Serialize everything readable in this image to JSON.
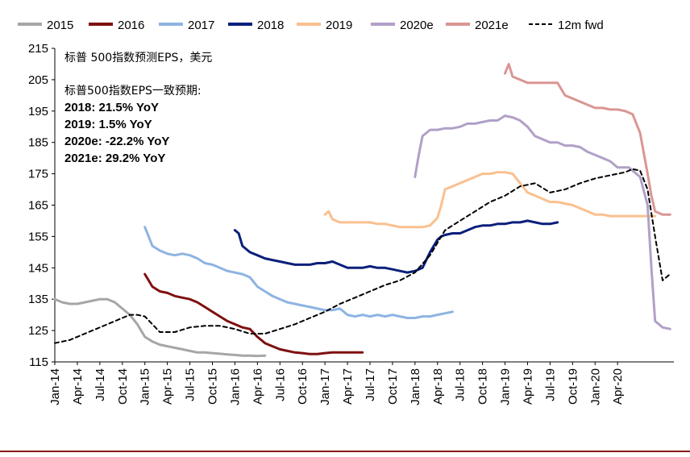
{
  "chart_data": {
    "type": "line",
    "title": "",
    "xlabel": "",
    "ylabel": "",
    "ylim": [
      115,
      215
    ],
    "yticks": [
      115,
      125,
      135,
      145,
      155,
      165,
      175,
      185,
      195,
      205,
      215
    ],
    "xticks": [
      "Jan-14",
      "Apr-14",
      "Jul-14",
      "Oct-14",
      "Jan-15",
      "Apr-15",
      "Jul-15",
      "Oct-15",
      "Jan-16",
      "Apr-16",
      "Jul-16",
      "Oct-16",
      "Jan-17",
      "Apr-17",
      "Jul-17",
      "Oct-17",
      "Jan-18",
      "Apr-18",
      "Jul-18",
      "Oct-18",
      "Jan-19",
      "Apr-19",
      "Jul-19",
      "Oct-19",
      "Jan-20",
      "Apr-20"
    ],
    "x_unit": "months since Jan-14",
    "annotations": {
      "title": "标普 500指数预测EPS，美元",
      "subtitle": "标普500指数EPS一致预期:",
      "lines": [
        "2018: 21.5% YoY",
        "2019: 1.5% YoY",
        "2020e: -22.2% YoY",
        "2021e: 29.2% YoY"
      ]
    },
    "series": [
      {
        "name": "2015",
        "color": "#a6a6a6",
        "dash": false,
        "x": [
          0,
          1,
          2,
          3,
          4,
          5,
          6,
          7,
          8,
          9,
          10,
          11,
          12,
          13,
          14,
          15,
          16,
          17,
          18,
          19,
          20,
          21,
          22,
          23,
          24,
          25,
          26,
          27,
          28
        ],
        "y": [
          135,
          134,
          133.5,
          133.5,
          134,
          134.5,
          135,
          135,
          134,
          132,
          130,
          127,
          123,
          121.5,
          120.5,
          120,
          119.5,
          119,
          118.5,
          118,
          118,
          117.8,
          117.6,
          117.4,
          117.2,
          117,
          117,
          116.9,
          117
        ]
      },
      {
        "name": "2016",
        "color": "#7f1010",
        "dash": false,
        "x": [
          12,
          12.5,
          13,
          14,
          15,
          16,
          17,
          18,
          19,
          20,
          21,
          22,
          23,
          24,
          25,
          26,
          27,
          28,
          29,
          30,
          31,
          32,
          33,
          34,
          35,
          36,
          37,
          38,
          39,
          40,
          41
        ],
        "y": [
          143,
          141,
          139,
          137.5,
          137,
          136,
          135.5,
          135,
          134,
          132.5,
          131,
          129.5,
          128,
          127,
          126,
          125.5,
          123,
          121,
          120,
          119,
          118.5,
          118,
          117.8,
          117.5,
          117.5,
          117.8,
          118,
          118,
          118,
          118,
          118
        ]
      },
      {
        "name": "2017",
        "color": "#8db4e2",
        "dash": false,
        "x": [
          12,
          12.5,
          13,
          14,
          15,
          16,
          17,
          18,
          19,
          20,
          21,
          22,
          23,
          24,
          25,
          26,
          27,
          28,
          29,
          30,
          31,
          32,
          33,
          34,
          35,
          36,
          37,
          38,
          39,
          40,
          41,
          42,
          43,
          44,
          45,
          46,
          47,
          48,
          49,
          50,
          51,
          52,
          53
        ],
        "y": [
          158,
          155,
          152,
          150.5,
          149.5,
          149,
          149.5,
          149,
          148,
          146.5,
          146,
          145,
          144,
          143.5,
          143,
          142,
          139,
          137.5,
          136,
          135,
          134,
          133.5,
          133,
          132.5,
          132,
          131.5,
          131.5,
          132,
          130,
          129.5,
          130,
          129.5,
          130,
          129.5,
          130,
          129.5,
          129,
          129,
          129.5,
          129.5,
          130,
          130.5,
          131
        ]
      },
      {
        "name": "2018",
        "color": "#0a1f7a",
        "dash": false,
        "x": [
          24,
          24.5,
          25,
          26,
          27,
          28,
          29,
          30,
          31,
          32,
          33,
          34,
          35,
          36,
          37,
          38,
          39,
          40,
          41,
          42,
          43,
          44,
          45,
          46,
          47,
          48,
          49,
          50,
          51,
          51.5,
          52,
          53,
          54,
          55,
          56,
          57,
          58,
          59,
          60,
          61,
          62,
          63,
          64,
          65,
          66,
          67
        ],
        "y": [
          157,
          156,
          152,
          150,
          149,
          148,
          147.5,
          147,
          146.5,
          146,
          146,
          146,
          146.5,
          146.5,
          147,
          146,
          145,
          145,
          145,
          145.5,
          145,
          145,
          144.5,
          144,
          143.5,
          144,
          145,
          150,
          154,
          155,
          155.5,
          156,
          156,
          157,
          158,
          158.5,
          158.5,
          159,
          159,
          159.5,
          159.5,
          160,
          159.5,
          159,
          159,
          159.5
        ]
      },
      {
        "name": "2019",
        "color": "#fac08f",
        "dash": false,
        "x": [
          36,
          36.5,
          37,
          38,
          39,
          40,
          41,
          42,
          43,
          44,
          45,
          46,
          47,
          48,
          49,
          50,
          51,
          51.5,
          52,
          53,
          54,
          55,
          56,
          57,
          58,
          59,
          60,
          61,
          62,
          63,
          64,
          65,
          66,
          67,
          68,
          69,
          70,
          71,
          72,
          73,
          74,
          75,
          76,
          77,
          78,
          79,
          80
        ],
        "y": [
          162,
          163,
          160.5,
          159.5,
          159.5,
          159.5,
          159.5,
          159.5,
          159,
          159,
          158.5,
          158,
          158,
          158,
          158,
          158.5,
          161,
          165,
          170,
          171,
          172,
          173,
          174,
          175,
          175,
          175.5,
          175.5,
          175,
          172,
          169,
          168,
          167,
          166,
          166,
          165.5,
          165,
          164,
          163,
          162,
          162,
          161.5,
          161.5,
          161.5,
          161.5,
          161.5,
          161.5,
          161.5
        ]
      },
      {
        "name": "2020e",
        "color": "#b1a0c7",
        "dash": false,
        "x": [
          48,
          48.5,
          49,
          50,
          51,
          52,
          53,
          54,
          55,
          56,
          57,
          58,
          59,
          60,
          61,
          62,
          63,
          64,
          65,
          66,
          67,
          68,
          69,
          70,
          71,
          72,
          73,
          74,
          75,
          76,
          76.5,
          77,
          78,
          79,
          79.5,
          80,
          81,
          82
        ],
        "y": [
          174,
          181,
          187,
          189,
          189,
          189.5,
          189.5,
          190,
          191,
          191,
          191.5,
          192,
          192,
          193.5,
          193,
          192,
          190,
          187,
          186,
          185,
          185,
          184,
          184,
          183.5,
          182,
          181,
          180,
          179,
          177,
          177,
          177,
          176,
          174,
          165,
          145,
          128,
          126,
          125.5
        ]
      },
      {
        "name": "2021e",
        "color": "#da9694",
        "dash": false,
        "x": [
          60,
          60.5,
          61,
          62,
          63,
          64,
          65,
          66,
          67,
          68,
          69,
          70,
          71,
          72,
          73,
          74,
          75,
          76,
          77,
          78,
          79,
          79.5,
          80,
          81,
          82
        ],
        "y": [
          207,
          210,
          206,
          205,
          204,
          204,
          204,
          204,
          204,
          200,
          199,
          198,
          197,
          196,
          196,
          195.5,
          195.5,
          195,
          194,
          188,
          175,
          168,
          163,
          162,
          162
        ]
      },
      {
        "name": "12m fwd",
        "color": "#000000",
        "dash": true,
        "x": [
          0,
          2,
          4,
          6,
          8,
          10,
          11,
          12,
          13,
          14,
          16,
          18,
          20,
          22,
          24,
          26,
          28,
          30,
          32,
          34,
          36,
          38,
          40,
          42,
          44,
          46,
          48,
          50,
          52,
          54,
          56,
          58,
          60,
          62,
          64,
          66,
          68,
          70,
          72,
          74,
          76,
          77,
          78,
          79,
          80,
          81,
          82
        ],
        "y": [
          121,
          122,
          124,
          126,
          128,
          130,
          130,
          129.5,
          127,
          124.5,
          124.5,
          126,
          126.5,
          126.5,
          125.5,
          124,
          124,
          125.5,
          127,
          129,
          131,
          133.5,
          135.5,
          137.5,
          139.5,
          141,
          143.5,
          149,
          157,
          160,
          163,
          166,
          168,
          171,
          172,
          169,
          170,
          172,
          173.5,
          174.5,
          175.5,
          176.5,
          176,
          170,
          155,
          141,
          143
        ]
      }
    ]
  }
}
